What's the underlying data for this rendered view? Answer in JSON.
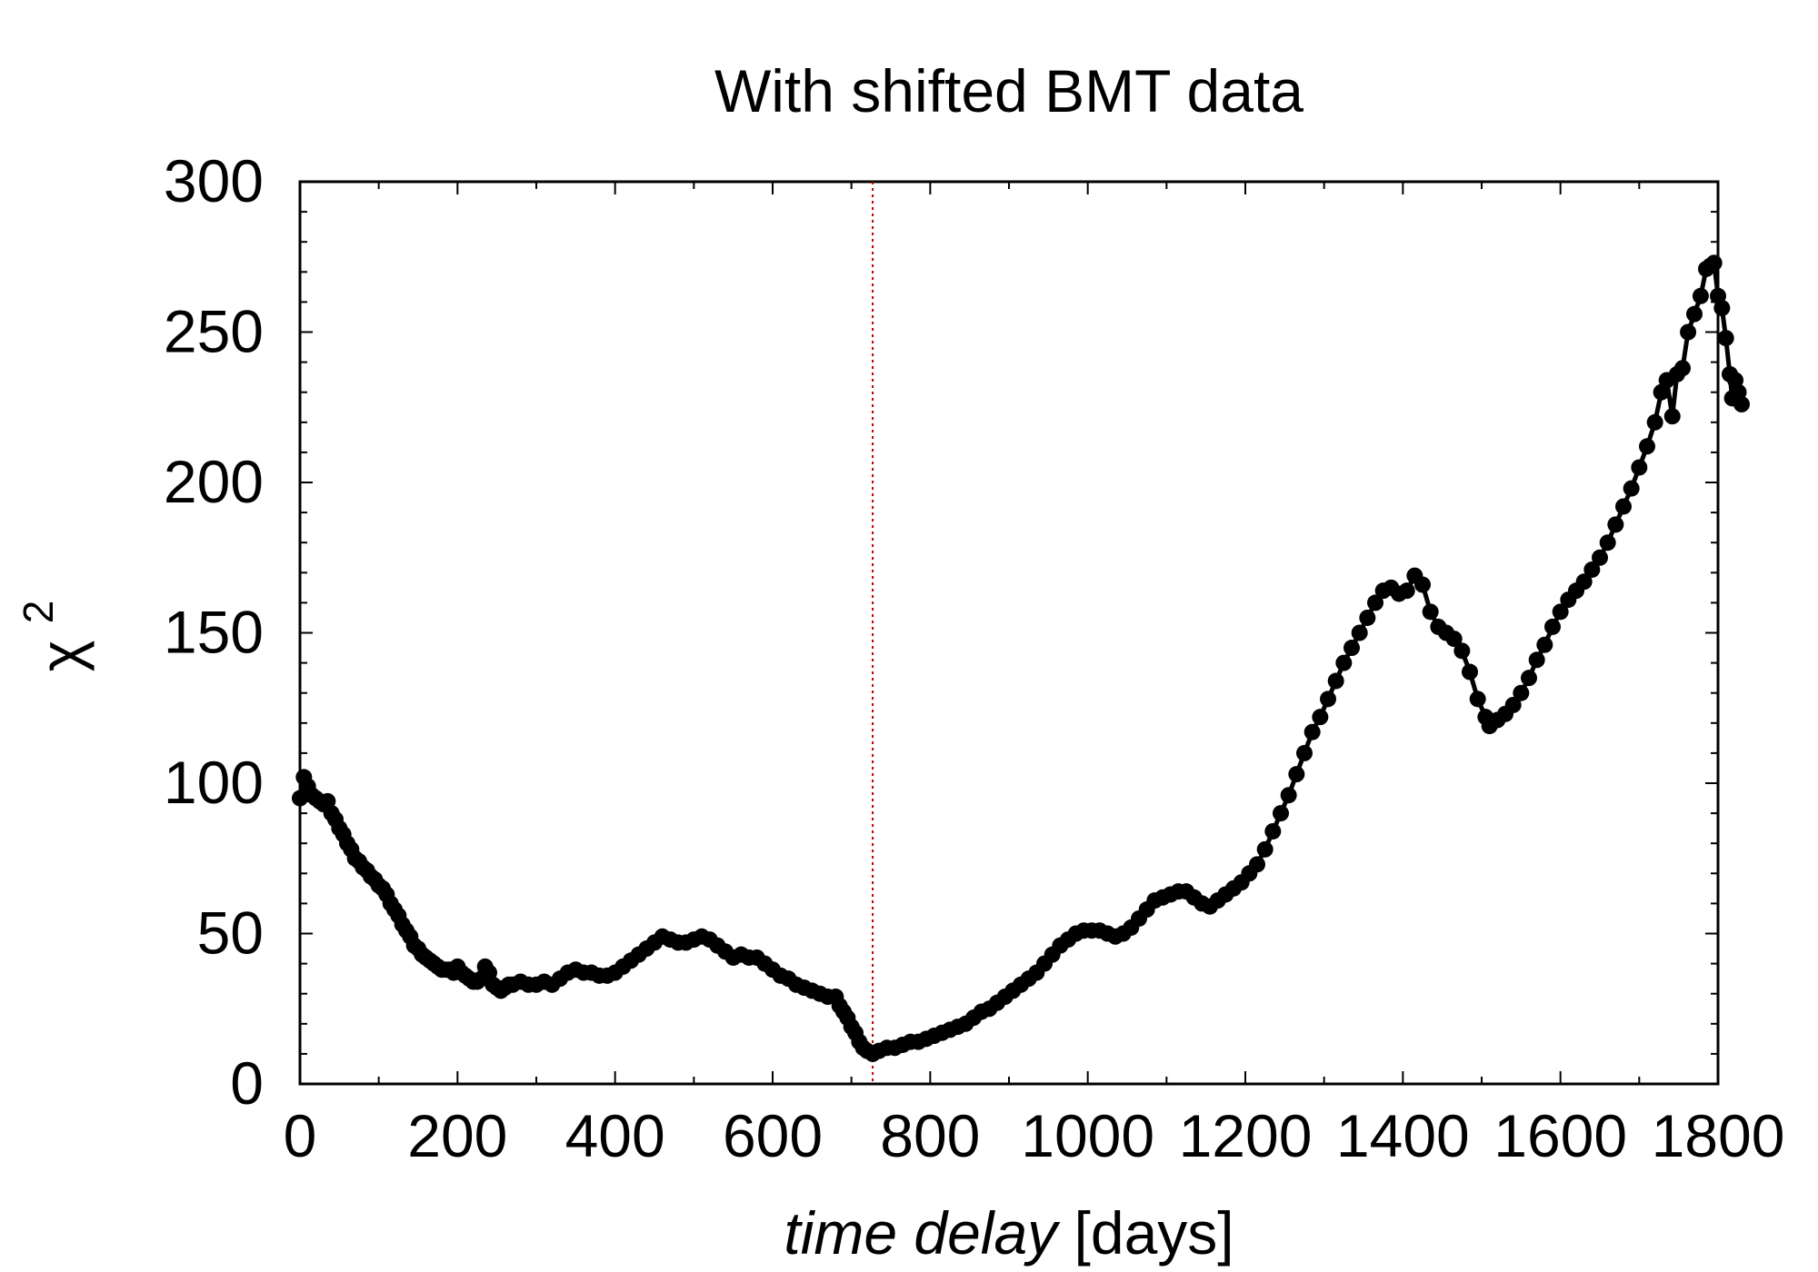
{
  "chart_data": {
    "type": "line",
    "title": "With shifted BMT data",
    "xlabel_italic": "time delay",
    "xlabel_unit": "[days]",
    "ylabel_symbol": "χ",
    "ylabel_superscript": "2",
    "xlim": [
      0,
      1800
    ],
    "ylim": [
      0,
      300
    ],
    "x_ticks": [
      0,
      200,
      400,
      600,
      800,
      1000,
      1200,
      1400,
      1600,
      1800
    ],
    "y_ticks": [
      0,
      50,
      100,
      150,
      200,
      250,
      300
    ],
    "x_tick_labels": [
      "0",
      "200",
      "400",
      "600",
      "800",
      "1000",
      "1200",
      "1400",
      "1600",
      "1800"
    ],
    "y_tick_labels": [
      "0",
      "50",
      "100",
      "150",
      "200",
      "250",
      "300"
    ],
    "grid": false,
    "reference_line": {
      "x": 727,
      "color": "#c00000",
      "style": "dotted"
    },
    "series": [
      {
        "color": "#000000",
        "marker": "circle",
        "points": [
          [
            0,
            95
          ],
          [
            5,
            102
          ],
          [
            10,
            99
          ],
          [
            15,
            96
          ],
          [
            20,
            95
          ],
          [
            25,
            94
          ],
          [
            30,
            93
          ],
          [
            35,
            94
          ],
          [
            40,
            90
          ],
          [
            45,
            88
          ],
          [
            50,
            85
          ],
          [
            55,
            83
          ],
          [
            60,
            80
          ],
          [
            65,
            78
          ],
          [
            70,
            75
          ],
          [
            75,
            74
          ],
          [
            80,
            72
          ],
          [
            85,
            71
          ],
          [
            90,
            69
          ],
          [
            95,
            68
          ],
          [
            100,
            66
          ],
          [
            105,
            65
          ],
          [
            110,
            63
          ],
          [
            115,
            60
          ],
          [
            120,
            58
          ],
          [
            125,
            56
          ],
          [
            130,
            53
          ],
          [
            135,
            51
          ],
          [
            140,
            49
          ],
          [
            145,
            46
          ],
          [
            150,
            45
          ],
          [
            155,
            43
          ],
          [
            160,
            42
          ],
          [
            165,
            41
          ],
          [
            170,
            40
          ],
          [
            175,
            39
          ],
          [
            180,
            38
          ],
          [
            185,
            38
          ],
          [
            190,
            38
          ],
          [
            195,
            37
          ],
          [
            200,
            39
          ],
          [
            205,
            37
          ],
          [
            210,
            36
          ],
          [
            215,
            35
          ],
          [
            220,
            34
          ],
          [
            225,
            34
          ],
          [
            230,
            35
          ],
          [
            235,
            39
          ],
          [
            240,
            37
          ],
          [
            245,
            33
          ],
          [
            250,
            32
          ],
          [
            255,
            31
          ],
          [
            260,
            32
          ],
          [
            265,
            33
          ],
          [
            270,
            33
          ],
          [
            280,
            34
          ],
          [
            290,
            33
          ],
          [
            300,
            33
          ],
          [
            310,
            34
          ],
          [
            320,
            33
          ],
          [
            330,
            35
          ],
          [
            340,
            37
          ],
          [
            350,
            38
          ],
          [
            360,
            37
          ],
          [
            370,
            37
          ],
          [
            380,
            36
          ],
          [
            390,
            36
          ],
          [
            400,
            37
          ],
          [
            410,
            39
          ],
          [
            420,
            41
          ],
          [
            430,
            43
          ],
          [
            440,
            45
          ],
          [
            450,
            47
          ],
          [
            460,
            49
          ],
          [
            470,
            48
          ],
          [
            480,
            47
          ],
          [
            490,
            47
          ],
          [
            500,
            48
          ],
          [
            510,
            49
          ],
          [
            520,
            48
          ],
          [
            530,
            46
          ],
          [
            540,
            44
          ],
          [
            550,
            42
          ],
          [
            560,
            43
          ],
          [
            570,
            42
          ],
          [
            580,
            42
          ],
          [
            590,
            40
          ],
          [
            600,
            38
          ],
          [
            610,
            36
          ],
          [
            620,
            35
          ],
          [
            630,
            33
          ],
          [
            640,
            32
          ],
          [
            650,
            31
          ],
          [
            660,
            30
          ],
          [
            670,
            29
          ],
          [
            680,
            29
          ],
          [
            685,
            26
          ],
          [
            690,
            24
          ],
          [
            695,
            22
          ],
          [
            700,
            19
          ],
          [
            705,
            17
          ],
          [
            710,
            14
          ],
          [
            715,
            12
          ],
          [
            720,
            11
          ],
          [
            727,
            10
          ],
          [
            735,
            11
          ],
          [
            745,
            12
          ],
          [
            755,
            12
          ],
          [
            765,
            13
          ],
          [
            775,
            14
          ],
          [
            785,
            14
          ],
          [
            795,
            15
          ],
          [
            805,
            16
          ],
          [
            815,
            17
          ],
          [
            825,
            18
          ],
          [
            835,
            19
          ],
          [
            845,
            20
          ],
          [
            855,
            22
          ],
          [
            865,
            24
          ],
          [
            875,
            25
          ],
          [
            885,
            27
          ],
          [
            895,
            29
          ],
          [
            905,
            31
          ],
          [
            915,
            33
          ],
          [
            925,
            35
          ],
          [
            935,
            37
          ],
          [
            945,
            40
          ],
          [
            955,
            43
          ],
          [
            965,
            46
          ],
          [
            975,
            48
          ],
          [
            985,
            50
          ],
          [
            995,
            51
          ],
          [
            1005,
            51
          ],
          [
            1015,
            51
          ],
          [
            1025,
            50
          ],
          [
            1035,
            49
          ],
          [
            1045,
            50
          ],
          [
            1055,
            52
          ],
          [
            1065,
            55
          ],
          [
            1075,
            58
          ],
          [
            1085,
            61
          ],
          [
            1095,
            62
          ],
          [
            1105,
            63
          ],
          [
            1115,
            64
          ],
          [
            1125,
            64
          ],
          [
            1135,
            62
          ],
          [
            1145,
            60
          ],
          [
            1155,
            59
          ],
          [
            1165,
            61
          ],
          [
            1175,
            63
          ],
          [
            1185,
            65
          ],
          [
            1195,
            67
          ],
          [
            1205,
            70
          ],
          [
            1215,
            73
          ],
          [
            1225,
            78
          ],
          [
            1235,
            84
          ],
          [
            1245,
            90
          ],
          [
            1255,
            96
          ],
          [
            1265,
            103
          ],
          [
            1275,
            110
          ],
          [
            1285,
            117
          ],
          [
            1295,
            122
          ],
          [
            1305,
            128
          ],
          [
            1315,
            134
          ],
          [
            1325,
            140
          ],
          [
            1335,
            145
          ],
          [
            1345,
            150
          ],
          [
            1355,
            155
          ],
          [
            1365,
            160
          ],
          [
            1375,
            164
          ],
          [
            1385,
            165
          ],
          [
            1395,
            163
          ],
          [
            1405,
            164
          ],
          [
            1415,
            169
          ],
          [
            1425,
            166
          ],
          [
            1435,
            157
          ],
          [
            1445,
            152
          ],
          [
            1455,
            150
          ],
          [
            1465,
            148
          ],
          [
            1475,
            144
          ],
          [
            1485,
            137
          ],
          [
            1495,
            128
          ],
          [
            1505,
            122
          ],
          [
            1510,
            119
          ],
          [
            1520,
            121
          ],
          [
            1530,
            123
          ],
          [
            1540,
            126
          ],
          [
            1550,
            130
          ],
          [
            1560,
            135
          ],
          [
            1570,
            141
          ],
          [
            1580,
            146
          ],
          [
            1590,
            152
          ],
          [
            1600,
            157
          ],
          [
            1610,
            161
          ],
          [
            1620,
            164
          ],
          [
            1630,
            167
          ],
          [
            1640,
            171
          ],
          [
            1650,
            175
          ],
          [
            1660,
            180
          ],
          [
            1670,
            186
          ],
          [
            1680,
            192
          ],
          [
            1690,
            198
          ],
          [
            1700,
            205
          ],
          [
            1710,
            212
          ],
          [
            1720,
            220
          ],
          [
            1728,
            230
          ],
          [
            1735,
            234
          ],
          [
            1742,
            222
          ],
          [
            1748,
            236
          ],
          [
            1755,
            238
          ],
          [
            1762,
            250
          ],
          [
            1770,
            256
          ],
          [
            1778,
            262
          ],
          [
            1785,
            271
          ],
          [
            1790,
            272
          ],
          [
            1795,
            273
          ],
          [
            1800,
            262
          ],
          [
            1805,
            258
          ],
          [
            1810,
            248
          ],
          [
            1815,
            236
          ],
          [
            1818,
            228
          ],
          [
            1822,
            234
          ],
          [
            1826,
            230
          ],
          [
            1830,
            226
          ]
        ]
      }
    ]
  }
}
